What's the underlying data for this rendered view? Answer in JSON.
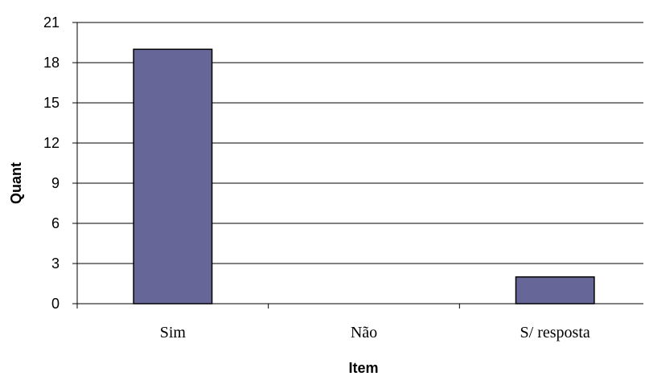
{
  "chart_data": {
    "type": "bar",
    "categories": [
      "Sim",
      "Não",
      "S/ resposta"
    ],
    "values": [
      19,
      0,
      2
    ],
    "title": "",
    "xlabel": "Item",
    "ylabel": "Quant",
    "ylim": [
      0,
      21
    ],
    "yticks": [
      0,
      3,
      6,
      9,
      12,
      15,
      18,
      21
    ],
    "grid": true,
    "legend": "none",
    "bar_color": "#666699"
  }
}
